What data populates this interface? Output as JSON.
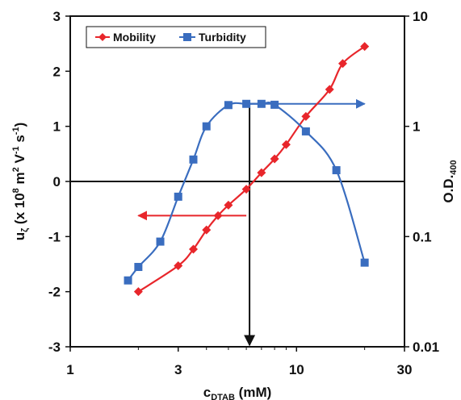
{
  "chart_data": {
    "type": "line",
    "x_axis": {
      "label_main": "c",
      "label_sub": "DTAB",
      "label_rest": " (mM)",
      "scale": "log",
      "range": [
        1,
        30
      ],
      "ticks": [
        1,
        3,
        10,
        30
      ],
      "tick_labels": [
        "1",
        "3",
        "10",
        "30"
      ]
    },
    "y_left": {
      "label_parts": [
        {
          "t": "u"
        },
        {
          "t": "ζ",
          "sub": true
        },
        {
          "t": " (x 10"
        },
        {
          "t": "8",
          "sup": true
        },
        {
          "t": " m"
        },
        {
          "t": "2",
          "sup": true
        },
        {
          "t": " V"
        },
        {
          "t": "-1",
          "sup": true
        },
        {
          "t": " s"
        },
        {
          "t": "-1",
          "sup": true
        },
        {
          "t": ")"
        }
      ],
      "range": [
        -3,
        3
      ],
      "ticks": [
        -3,
        -2,
        -1,
        0,
        1,
        2,
        3
      ],
      "tick_labels": [
        "-3",
        "-2",
        "-1",
        "0",
        "1",
        "2",
        "3"
      ]
    },
    "y_right": {
      "label_main": "O.D.",
      "label_sub": "400",
      "scale": "log",
      "range": [
        0.01,
        10
      ],
      "ticks": [
        0.01,
        0.1,
        1,
        10
      ],
      "tick_labels": [
        "0.01",
        "0.1",
        "1",
        "10"
      ]
    },
    "legend": {
      "position": "top-left",
      "entries": [
        "Mobility",
        "Turbidity"
      ]
    },
    "colors": {
      "mobility": "#e8262b",
      "turbidity": "#3a6dbf",
      "arrow_black": "#111111"
    },
    "series": [
      {
        "name": "Mobility",
        "axis": "left",
        "marker": "diamond",
        "x": [
          2.0,
          3.0,
          3.5,
          4.0,
          4.5,
          5.0,
          6.0,
          7.0,
          8.0,
          9.0,
          11.0,
          14.0,
          16.0,
          20.0
        ],
        "y": [
          -2.0,
          -1.53,
          -1.23,
          -0.88,
          -0.62,
          -0.43,
          -0.14,
          0.16,
          0.41,
          0.67,
          1.18,
          1.67,
          2.14,
          2.45
        ]
      },
      {
        "name": "Turbidity",
        "axis": "right",
        "marker": "square",
        "x": [
          1.8,
          2.0,
          2.5,
          3.0,
          3.5,
          4.0,
          5.0,
          6.0,
          7.0,
          8.0,
          11.0,
          15.0,
          20.0
        ],
        "y": [
          0.04,
          0.053,
          0.09,
          0.23,
          0.5,
          1.0,
          1.56,
          1.6,
          1.6,
          1.57,
          0.9,
          0.4,
          0.058
        ]
      }
    ],
    "annotations": [
      {
        "type": "arrow",
        "color": "red",
        "direction": "left",
        "points_to": "y_left",
        "from": [
          6.0,
          -0.62
        ],
        "to": [
          2.0,
          -0.62
        ]
      },
      {
        "type": "arrow",
        "color": "blue",
        "direction": "right",
        "points_to": "y_right",
        "from": [
          6.0,
          1.6
        ],
        "to": [
          20.0,
          1.6
        ]
      },
      {
        "type": "arrow",
        "color": "black",
        "direction": "down",
        "points_to": "x_axis",
        "x": 6.2,
        "from_y": 1.4,
        "to_y": -3.0
      },
      {
        "type": "reference_line",
        "axis": "left",
        "y": 0
      }
    ]
  }
}
